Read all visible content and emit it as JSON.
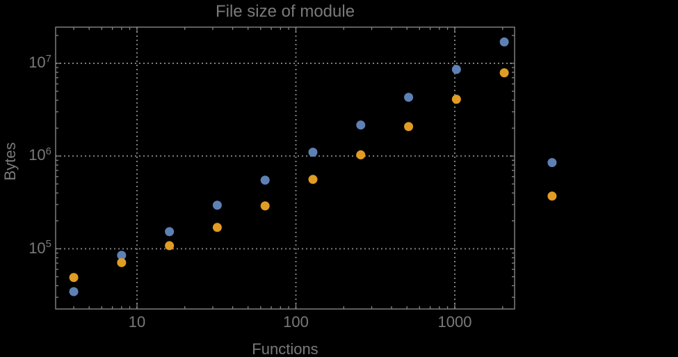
{
  "colors": {
    "background": "#000000",
    "frame": "#868686",
    "grid": "#808080",
    "text": "#7a7a7a",
    "series1_blue": "#5e81b5",
    "series2_orange": "#e19c24"
  },
  "chart_data": {
    "type": "scatter",
    "title": "File size of module",
    "xlabel": "Functions",
    "ylabel": "Bytes",
    "x_scale": "log",
    "y_scale": "log",
    "xlim": [
      3.1,
      2380
    ],
    "ylim": [
      22400,
      24600000
    ],
    "grid": "dotted",
    "legend": "none",
    "x_ticks": [
      {
        "value": 10,
        "label": "10"
      },
      {
        "value": 100,
        "label": "100"
      },
      {
        "value": 1000,
        "label": "1000"
      }
    ],
    "y_ticks": [
      {
        "value": 100000,
        "base": "10",
        "exp": "5"
      },
      {
        "value": 1000000,
        "base": "10",
        "exp": "6"
      },
      {
        "value": 10000000,
        "base": "10",
        "exp": "7"
      }
    ],
    "x": [
      4,
      8,
      16,
      32,
      64,
      128,
      256,
      512,
      1024,
      2048,
      4096
    ],
    "series": [
      {
        "name": "blue",
        "color": "#5e81b5",
        "values": [
          34500,
          85000,
          153000,
          295000,
          550000,
          1100000,
          2160000,
          4300000,
          8600000,
          17000000,
          850000
        ]
      },
      {
        "name": "orange",
        "color": "#e19c24",
        "values": [
          49000,
          71000,
          108000,
          170000,
          290000,
          560000,
          1030000,
          2080000,
          4100000,
          7900000,
          370000
        ]
      }
    ]
  }
}
